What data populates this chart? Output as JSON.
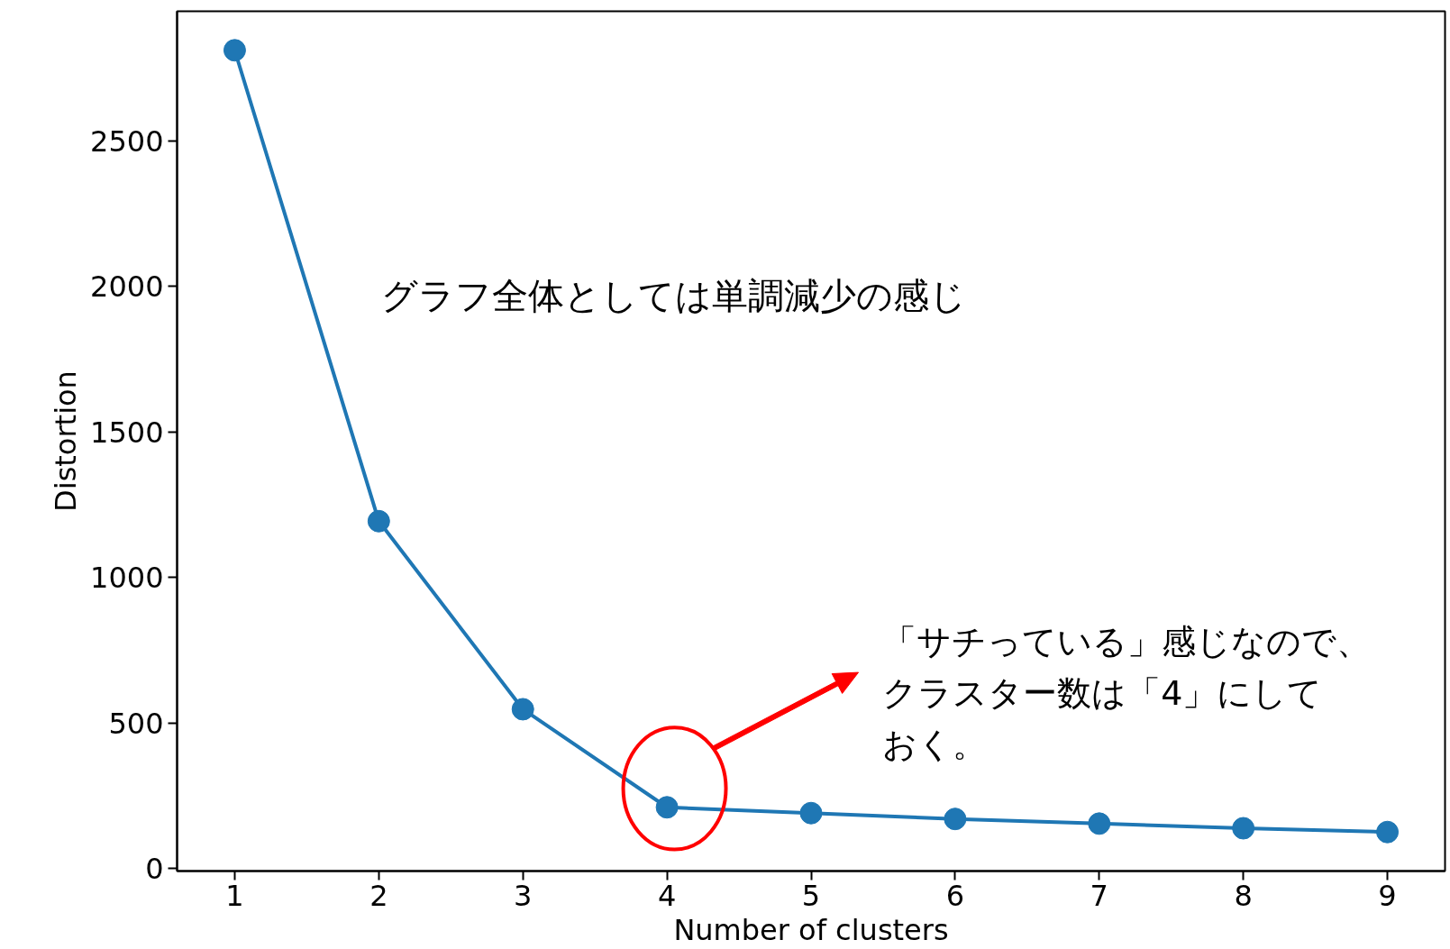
{
  "chart_data": {
    "type": "line",
    "xlabel": "Number of clusters",
    "ylabel": "Distortion",
    "x": [
      1,
      2,
      3,
      4,
      5,
      6,
      7,
      8,
      9
    ],
    "series": [
      {
        "color": "#1f77b4",
        "values": [
          2811,
          1193,
          547,
          210,
          190,
          170,
          154,
          138,
          125
        ]
      }
    ],
    "xlim": [
      0.6,
      9.4
    ],
    "ylim": [
      -9,
      2945
    ],
    "xticks": [
      1,
      2,
      3,
      4,
      5,
      6,
      7,
      8,
      9
    ],
    "yticks": [
      0,
      500,
      1000,
      1500,
      2000,
      2500
    ],
    "grid": false,
    "marker": "circle",
    "line_style": "solid",
    "annotations": [
      "グラフ全体としては単調減少の感じ",
      "「サチっている」感じなので、クラスター数は「4」にしておく。"
    ]
  }
}
